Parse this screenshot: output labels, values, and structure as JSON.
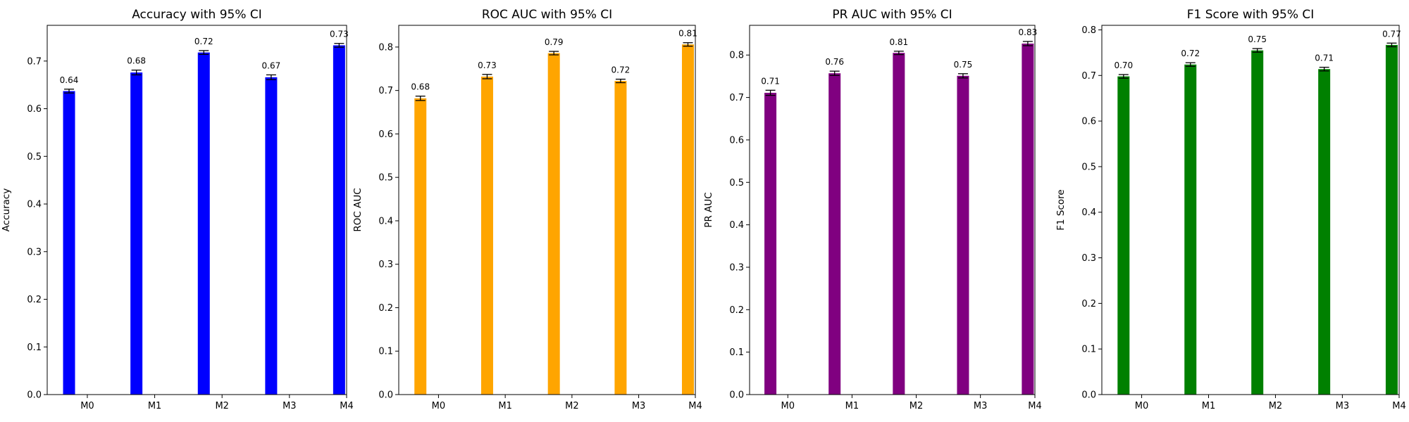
{
  "chart_data": [
    {
      "type": "bar",
      "title": "Accuracy with 95% CI",
      "xlabel": "",
      "ylabel": "Accuracy",
      "categories": [
        "M0",
        "M1",
        "M2",
        "M3",
        "M4"
      ],
      "values": [
        0.637,
        0.676,
        0.718,
        0.666,
        0.733
      ],
      "ci_halfwidth": [
        0.004,
        0.005,
        0.004,
        0.005,
        0.004
      ],
      "value_labels": [
        "0.64",
        "0.68",
        "0.72",
        "0.67",
        "0.73"
      ],
      "color": "#0000ff",
      "ylim": [
        0,
        0.775
      ],
      "yticks": [
        0.0,
        0.1,
        0.2,
        0.3,
        0.4,
        0.5,
        0.6,
        0.7
      ],
      "ytick_labels": [
        "0.0",
        "0.1",
        "0.2",
        "0.3",
        "0.4",
        "0.5",
        "0.6",
        "0.7"
      ],
      "grid": false
    },
    {
      "type": "bar",
      "title": "ROC AUC with 95% CI",
      "xlabel": "",
      "ylabel": "ROC AUC",
      "categories": [
        "M0",
        "M1",
        "M2",
        "M3",
        "M4"
      ],
      "values": [
        0.682,
        0.732,
        0.786,
        0.722,
        0.806
      ],
      "ci_halfwidth": [
        0.005,
        0.005,
        0.004,
        0.004,
        0.004
      ],
      "value_labels": [
        "0.68",
        "0.73",
        "0.79",
        "0.72",
        "0.81"
      ],
      "color": "#ffa500",
      "ylim": [
        0,
        0.85
      ],
      "yticks": [
        0.0,
        0.1,
        0.2,
        0.3,
        0.4,
        0.5,
        0.6,
        0.7,
        0.8
      ],
      "ytick_labels": [
        "0.0",
        "0.1",
        "0.2",
        "0.3",
        "0.4",
        "0.5",
        "0.6",
        "0.7",
        "0.8"
      ],
      "grid": false
    },
    {
      "type": "bar",
      "title": "PR AUC with 95% CI",
      "xlabel": "",
      "ylabel": "PR AUC",
      "categories": [
        "M0",
        "M1",
        "M2",
        "M3",
        "M4"
      ],
      "values": [
        0.711,
        0.757,
        0.805,
        0.751,
        0.827
      ],
      "ci_halfwidth": [
        0.006,
        0.005,
        0.004,
        0.005,
        0.005
      ],
      "value_labels": [
        "0.71",
        "0.76",
        "0.81",
        "0.75",
        "0.83"
      ],
      "color": "#800080",
      "ylim": [
        0,
        0.87
      ],
      "yticks": [
        0.0,
        0.1,
        0.2,
        0.3,
        0.4,
        0.5,
        0.6,
        0.7,
        0.8
      ],
      "ytick_labels": [
        "0.0",
        "0.1",
        "0.2",
        "0.3",
        "0.4",
        "0.5",
        "0.6",
        "0.7",
        "0.8"
      ],
      "grid": false
    },
    {
      "type": "bar",
      "title": "F1 Score with 95% CI",
      "xlabel": "",
      "ylabel": "F1 Score",
      "categories": [
        "M0",
        "M1",
        "M2",
        "M3",
        "M4"
      ],
      "values": [
        0.698,
        0.724,
        0.755,
        0.714,
        0.767
      ],
      "ci_halfwidth": [
        0.004,
        0.004,
        0.004,
        0.004,
        0.004
      ],
      "value_labels": [
        "0.70",
        "0.72",
        "0.75",
        "0.71",
        "0.77"
      ],
      "color": "#008000",
      "ylim": [
        0,
        0.81
      ],
      "yticks": [
        0.0,
        0.1,
        0.2,
        0.3,
        0.4,
        0.5,
        0.6,
        0.7,
        0.8
      ],
      "ytick_labels": [
        "0.0",
        "0.1",
        "0.2",
        "0.3",
        "0.4",
        "0.5",
        "0.6",
        "0.7",
        "0.8"
      ],
      "grid": false
    }
  ]
}
